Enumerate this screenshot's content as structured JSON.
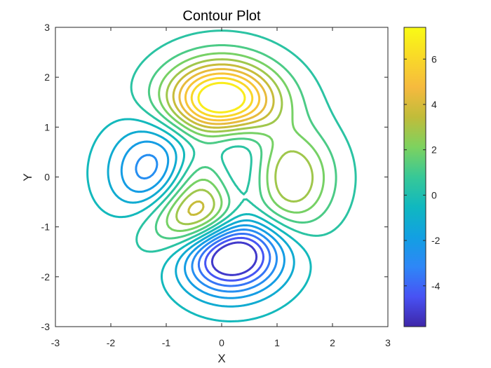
{
  "chart_data": {
    "type": "contour",
    "title": "Contour Plot",
    "xlabel": "X",
    "ylabel": "Y",
    "xlim": [
      -3,
      3
    ],
    "ylim": [
      -3,
      3
    ],
    "xticks": [
      "-3",
      "-2",
      "-1",
      "0",
      "1",
      "2",
      "3"
    ],
    "yticks": [
      "-3",
      "-2",
      "-1",
      "0",
      "1",
      "2",
      "3"
    ],
    "function": "peaks",
    "colormap": "parula",
    "clim": [
      -5.8,
      7.4
    ],
    "levels": [
      -5.2,
      -4.4,
      -3.6,
      -2.8,
      -2.0,
      -1.2,
      -0.4,
      0.4,
      1.2,
      2.0,
      2.8,
      3.6,
      4.4,
      5.2,
      6.0,
      6.8
    ],
    "colorbar": {
      "ticks": [
        -4,
        -2,
        0,
        2,
        4,
        6
      ],
      "tick_labels": [
        "-4",
        "-2",
        "0",
        "2",
        "4",
        "6"
      ]
    },
    "grid": false,
    "box": true
  }
}
